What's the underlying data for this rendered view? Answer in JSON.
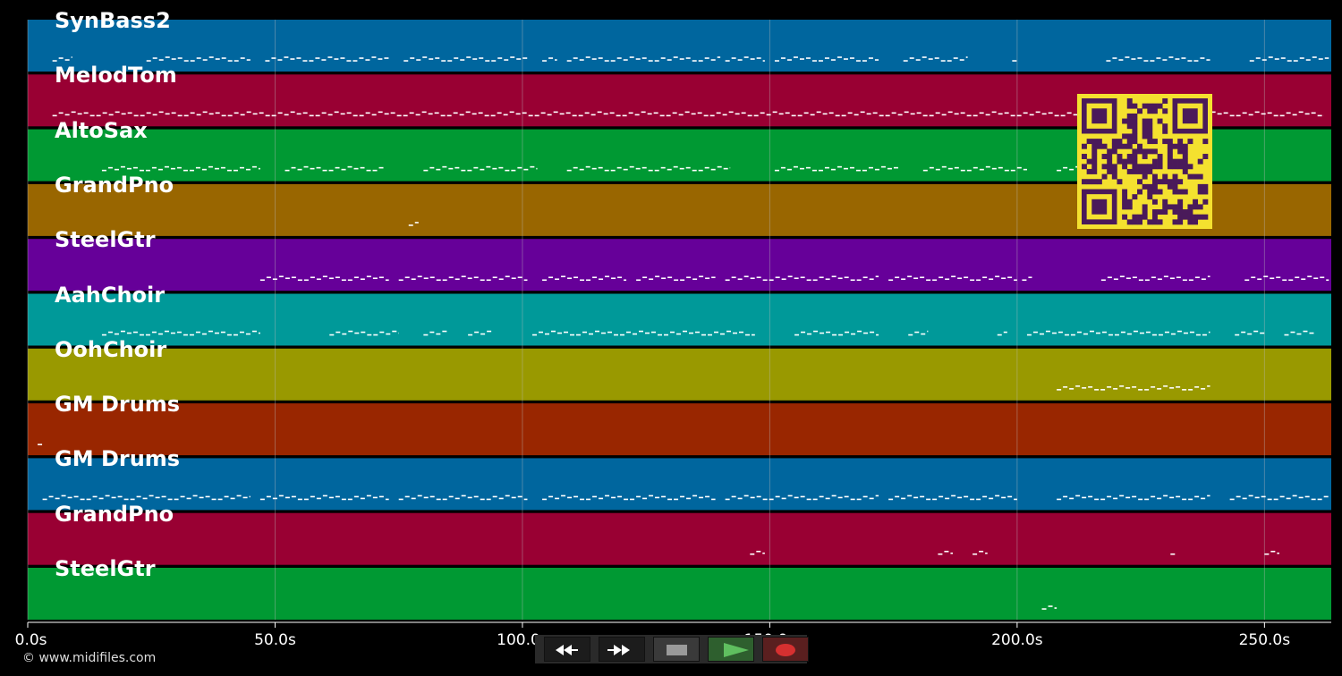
{
  "tracks": [
    {
      "name": "SynBass2",
      "color": "#00669e"
    },
    {
      "name": "MelodTom",
      "color": "#990033"
    },
    {
      "name": "AltoSax",
      "color": "#009933"
    },
    {
      "name": "GrandPno",
      "color": "#996600"
    },
    {
      "name": "SteelGtr",
      "color": "#660099"
    },
    {
      "name": "AahChoir",
      "color": "#009999"
    },
    {
      "name": "OohChoir",
      "color": "#999900"
    },
    {
      "name": "GM Drums",
      "color": "#992600"
    },
    {
      "name": "GM Drums",
      "color": "#00669e"
    },
    {
      "name": "GrandPno",
      "color": "#990033"
    },
    {
      "name": "SteelGtr",
      "color": "#009933"
    }
  ],
  "time_axis": {
    "ticks": [
      {
        "value": 0,
        "label": "0.0s"
      },
      {
        "value": 50,
        "label": "50.0s"
      },
      {
        "value": 100,
        "label": "100.0s"
      },
      {
        "value": 150,
        "label": "150.0s"
      },
      {
        "value": 200,
        "label": "200.0s"
      },
      {
        "value": 250,
        "label": "250.0s"
      }
    ],
    "range": [
      0,
      263.5
    ]
  },
  "note_segments": [
    [
      [
        5,
        9
      ],
      [
        24,
        45
      ],
      [
        48,
        73
      ],
      [
        76,
        101
      ],
      [
        104,
        107
      ],
      [
        109,
        140
      ],
      [
        141,
        149
      ],
      [
        151,
        172
      ],
      [
        177,
        190
      ],
      [
        199,
        200
      ],
      [
        218,
        239
      ],
      [
        247,
        263
      ]
    ],
    [
      [
        5,
        262
      ]
    ],
    [
      [
        15,
        47
      ],
      [
        52,
        72
      ],
      [
        80,
        103
      ],
      [
        109,
        142
      ],
      [
        151,
        176
      ],
      [
        181,
        202
      ],
      [
        208,
        239
      ]
    ],
    [
      [
        77,
        79
      ]
    ],
    [
      [
        47,
        73
      ],
      [
        75,
        101
      ],
      [
        104,
        121
      ],
      [
        123,
        139
      ],
      [
        141,
        172
      ],
      [
        174,
        200
      ],
      [
        201,
        203
      ],
      [
        217,
        239
      ],
      [
        246,
        263
      ]
    ],
    [
      [
        15,
        47
      ],
      [
        61,
        75
      ],
      [
        80,
        85
      ],
      [
        89,
        94
      ],
      [
        102,
        147
      ],
      [
        155,
        172
      ],
      [
        178,
        182
      ],
      [
        196,
        198
      ],
      [
        202,
        239
      ],
      [
        244,
        250
      ],
      [
        254,
        260
      ]
    ],
    [
      [
        208,
        239
      ]
    ],
    [
      [
        2,
        3
      ]
    ],
    [
      [
        3,
        45
      ],
      [
        47,
        73
      ],
      [
        75,
        101
      ],
      [
        104,
        139
      ],
      [
        141,
        172
      ],
      [
        174,
        200
      ],
      [
        208,
        239
      ],
      [
        243,
        263
      ]
    ],
    [
      [
        146,
        149
      ],
      [
        184,
        187
      ],
      [
        191,
        194
      ],
      [
        231,
        232
      ],
      [
        250,
        253
      ]
    ],
    [
      [
        205,
        208
      ]
    ]
  ],
  "copyright": "© www.midifiles.com",
  "transport": {
    "rewind_icon": "rewind-icon",
    "fast_forward_icon": "fast-forward-icon",
    "stop_icon": "stop-icon",
    "play_icon": "play-icon",
    "record_icon": "record-icon"
  },
  "colors": {
    "background": "#000000",
    "grid": "#bbbbbb",
    "note": "#ffffff",
    "qr_fg": "#4a1a5a",
    "qr_bg": "#f4e12f",
    "play": "#4caf50",
    "record": "#d32f2f"
  }
}
